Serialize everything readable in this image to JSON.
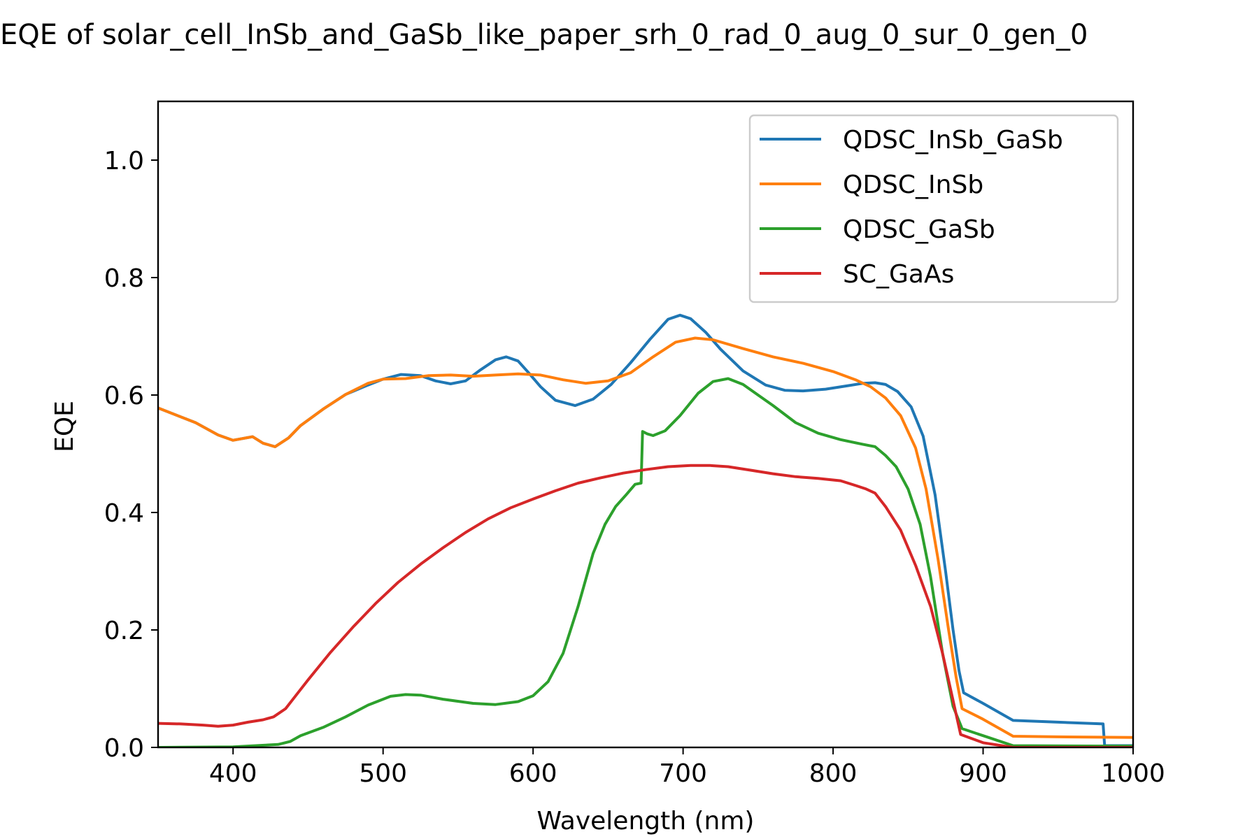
{
  "chart_data": {
    "type": "line",
    "title": "EQE of  solar_cell_InSb_and_GaSb_like_paper_srh_0_rad_0_aug_0_sur_0_gen_0",
    "xlabel": "Wavelength (nm)",
    "ylabel": "EQE",
    "xlim": [
      350,
      1000
    ],
    "ylim": [
      0,
      1.1
    ],
    "xticks": [
      400,
      500,
      600,
      700,
      800,
      900,
      1000
    ],
    "xtick_labels": [
      "400",
      "500",
      "600",
      "700",
      "800",
      "900",
      "1000"
    ],
    "yticks": [
      0.0,
      0.2,
      0.4,
      0.6,
      0.8,
      1.0
    ],
    "ytick_labels": [
      "0.0",
      "0.2",
      "0.4",
      "0.6",
      "0.8",
      "1.0"
    ],
    "grid": false,
    "legend_position": "top-right",
    "series": [
      {
        "name": "QDSC_InSb_GaSb",
        "color": "#1f77b4",
        "x": [
          350,
          375,
          390,
          400,
          413,
          420,
          428,
          437,
          445,
          460,
          475,
          490,
          500,
          512,
          525,
          535,
          545,
          555,
          565,
          575,
          582,
          590,
          597,
          605,
          615,
          628,
          640,
          652,
          665,
          678,
          690,
          698,
          705,
          715,
          725,
          740,
          755,
          768,
          780,
          795,
          810,
          820,
          828,
          835,
          843,
          852,
          860,
          868,
          875,
          880,
          884,
          887,
          900,
          920,
          950,
          980,
          981,
          1000
        ],
        "y": [
          0.578,
          0.553,
          0.532,
          0.523,
          0.529,
          0.518,
          0.512,
          0.527,
          0.548,
          0.576,
          0.601,
          0.617,
          0.627,
          0.635,
          0.633,
          0.624,
          0.619,
          0.624,
          0.643,
          0.66,
          0.665,
          0.658,
          0.638,
          0.614,
          0.591,
          0.582,
          0.593,
          0.618,
          0.655,
          0.695,
          0.729,
          0.736,
          0.73,
          0.707,
          0.678,
          0.641,
          0.617,
          0.608,
          0.607,
          0.61,
          0.616,
          0.62,
          0.621,
          0.618,
          0.606,
          0.58,
          0.53,
          0.43,
          0.3,
          0.2,
          0.13,
          0.093,
          0.075,
          0.046,
          0.043,
          0.04,
          0.003,
          0.003
        ]
      },
      {
        "name": "QDSC_InSb",
        "color": "#ff7f0e",
        "x": [
          350,
          375,
          390,
          400,
          413,
          420,
          428,
          437,
          445,
          460,
          475,
          490,
          500,
          515,
          530,
          545,
          560,
          575,
          590,
          605,
          620,
          635,
          650,
          665,
          680,
          695,
          708,
          720,
          740,
          760,
          780,
          800,
          815,
          825,
          835,
          845,
          855,
          862,
          870,
          877,
          882,
          886,
          900,
          920,
          950,
          1000
        ],
        "y": [
          0.578,
          0.553,
          0.532,
          0.523,
          0.529,
          0.518,
          0.512,
          0.527,
          0.548,
          0.576,
          0.601,
          0.62,
          0.627,
          0.628,
          0.633,
          0.634,
          0.632,
          0.634,
          0.636,
          0.634,
          0.626,
          0.62,
          0.624,
          0.638,
          0.665,
          0.69,
          0.697,
          0.694,
          0.679,
          0.665,
          0.654,
          0.64,
          0.626,
          0.614,
          0.595,
          0.565,
          0.51,
          0.44,
          0.32,
          0.2,
          0.12,
          0.066,
          0.048,
          0.019,
          0.018,
          0.017
        ]
      },
      {
        "name": "QDSC_GaSb",
        "color": "#2ca02c",
        "x": [
          350,
          400,
          430,
          438,
          445,
          460,
          475,
          490,
          505,
          515,
          525,
          540,
          560,
          575,
          590,
          600,
          610,
          620,
          630,
          640,
          648,
          655,
          662,
          668,
          672,
          673,
          676,
          680,
          688,
          698,
          710,
          720,
          730,
          740,
          750,
          760,
          775,
          790,
          805,
          820,
          828,
          835,
          842,
          850,
          858,
          865,
          873,
          880,
          886,
          900,
          920,
          1000
        ],
        "y": [
          0.0,
          0.001,
          0.005,
          0.01,
          0.02,
          0.034,
          0.052,
          0.072,
          0.087,
          0.09,
          0.089,
          0.082,
          0.075,
          0.073,
          0.078,
          0.088,
          0.112,
          0.16,
          0.24,
          0.33,
          0.38,
          0.41,
          0.43,
          0.448,
          0.45,
          0.538,
          0.534,
          0.531,
          0.539,
          0.565,
          0.603,
          0.623,
          0.628,
          0.618,
          0.6,
          0.582,
          0.553,
          0.535,
          0.524,
          0.516,
          0.512,
          0.497,
          0.478,
          0.44,
          0.38,
          0.29,
          0.16,
          0.07,
          0.032,
          0.02,
          0.003,
          0.002
        ]
      },
      {
        "name": "SC_GaAs",
        "color": "#d62728",
        "x": [
          350,
          365,
          380,
          390,
          400,
          410,
          420,
          427,
          435,
          443,
          450,
          465,
          480,
          495,
          510,
          525,
          540,
          555,
          570,
          585,
          600,
          615,
          630,
          645,
          660,
          675,
          690,
          705,
          718,
          730,
          745,
          760,
          775,
          790,
          805,
          815,
          822,
          828,
          835,
          845,
          855,
          865,
          873,
          880,
          885,
          900,
          920,
          1000
        ],
        "y": [
          0.041,
          0.04,
          0.038,
          0.036,
          0.038,
          0.043,
          0.047,
          0.052,
          0.066,
          0.092,
          0.115,
          0.162,
          0.205,
          0.245,
          0.281,
          0.312,
          0.34,
          0.366,
          0.389,
          0.408,
          0.423,
          0.437,
          0.45,
          0.459,
          0.467,
          0.473,
          0.478,
          0.48,
          0.48,
          0.478,
          0.472,
          0.466,
          0.461,
          0.458,
          0.454,
          0.446,
          0.44,
          0.433,
          0.41,
          0.37,
          0.31,
          0.24,
          0.16,
          0.08,
          0.022,
          0.008,
          0.0,
          0.0
        ]
      }
    ]
  }
}
